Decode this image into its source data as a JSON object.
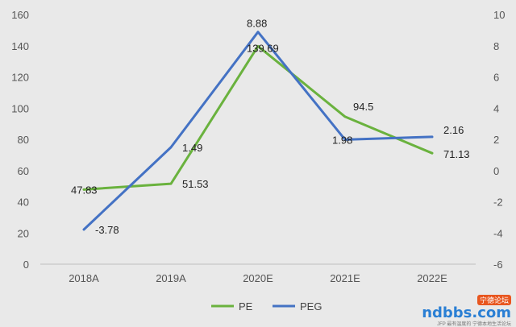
{
  "chart_data": {
    "type": "line",
    "categories": [
      "2018A",
      "2019A",
      "2020E",
      "2021E",
      "2022E"
    ],
    "series": [
      {
        "name": "PE",
        "axis": "left",
        "color": "#6ab23e",
        "values": [
          47.83,
          51.53,
          139.69,
          94.5,
          71.13
        ],
        "labels": [
          "47.83",
          "51.53",
          "139.69",
          "94.5",
          "71.13"
        ]
      },
      {
        "name": "PEG",
        "axis": "right",
        "color": "#4472c4",
        "values": [
          -3.78,
          1.49,
          8.88,
          1.98,
          2.16
        ],
        "labels": [
          "-3.78",
          "1.49",
          "8.88",
          "1.98",
          "2.16"
        ]
      }
    ],
    "y_left": {
      "min": 0,
      "max": 160,
      "ticks": [
        "0",
        "20",
        "40",
        "60",
        "80",
        "100",
        "120",
        "140",
        "160"
      ]
    },
    "y_right": {
      "min": -6,
      "max": 10,
      "ticks": [
        "-6",
        "-4",
        "-2",
        "0",
        "2",
        "4",
        "6",
        "8",
        "10"
      ]
    },
    "grid": false,
    "legend": "bottom"
  },
  "watermark": {
    "brand": "ndbbs.com",
    "badge": "宁德论坛",
    "sub": "JFP 最有温度的 宁德本地生活论坛"
  }
}
